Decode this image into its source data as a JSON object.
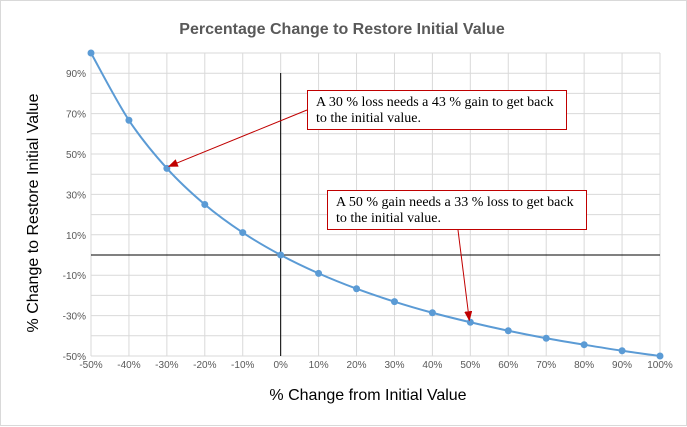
{
  "chart_data": {
    "type": "line",
    "title": "Percentage Change to Restore Initial Value",
    "xlabel": "% Change from Initial Value",
    "ylabel": "% Change to Restore Initial Value",
    "xlim": [
      -50,
      100
    ],
    "ylim": [
      -50,
      100
    ],
    "x_ticks": [
      "-50%",
      "-40%",
      "-30%",
      "-20%",
      "-10%",
      "0%",
      "10%",
      "20%",
      "30%",
      "40%",
      "50%",
      "60%",
      "70%",
      "80%",
      "90%",
      "100%"
    ],
    "y_ticks": [
      "90%",
      "70%",
      "50%",
      "30%",
      "10%",
      "-10%",
      "-30%",
      "-50%"
    ],
    "series": [
      {
        "x": [
          -50,
          -40,
          -30,
          -20,
          -10,
          0,
          10,
          20,
          30,
          40,
          50,
          60,
          70,
          80,
          90,
          100
        ],
        "y": [
          100,
          66.7,
          42.9,
          25,
          11.1,
          0,
          -9.1,
          -16.7,
          -23.1,
          -28.6,
          -33.3,
          -37.5,
          -41.2,
          -44.4,
          -47.4,
          -50
        ],
        "color": "#5b9bd5"
      }
    ],
    "grid": true,
    "annotations": [
      {
        "text": "A 30 % loss needs a 43 % gain to get back to the initial value.",
        "point": [
          -30,
          42.9
        ]
      },
      {
        "text": "A 50 % gain needs a 33 % loss to get back to the initial value.",
        "point": [
          50,
          -33.3
        ]
      }
    ]
  },
  "colors": {
    "series": "#5b9bd5",
    "arrow": "#c00000",
    "grid": "#d9d9d9",
    "axis": "#000000"
  }
}
